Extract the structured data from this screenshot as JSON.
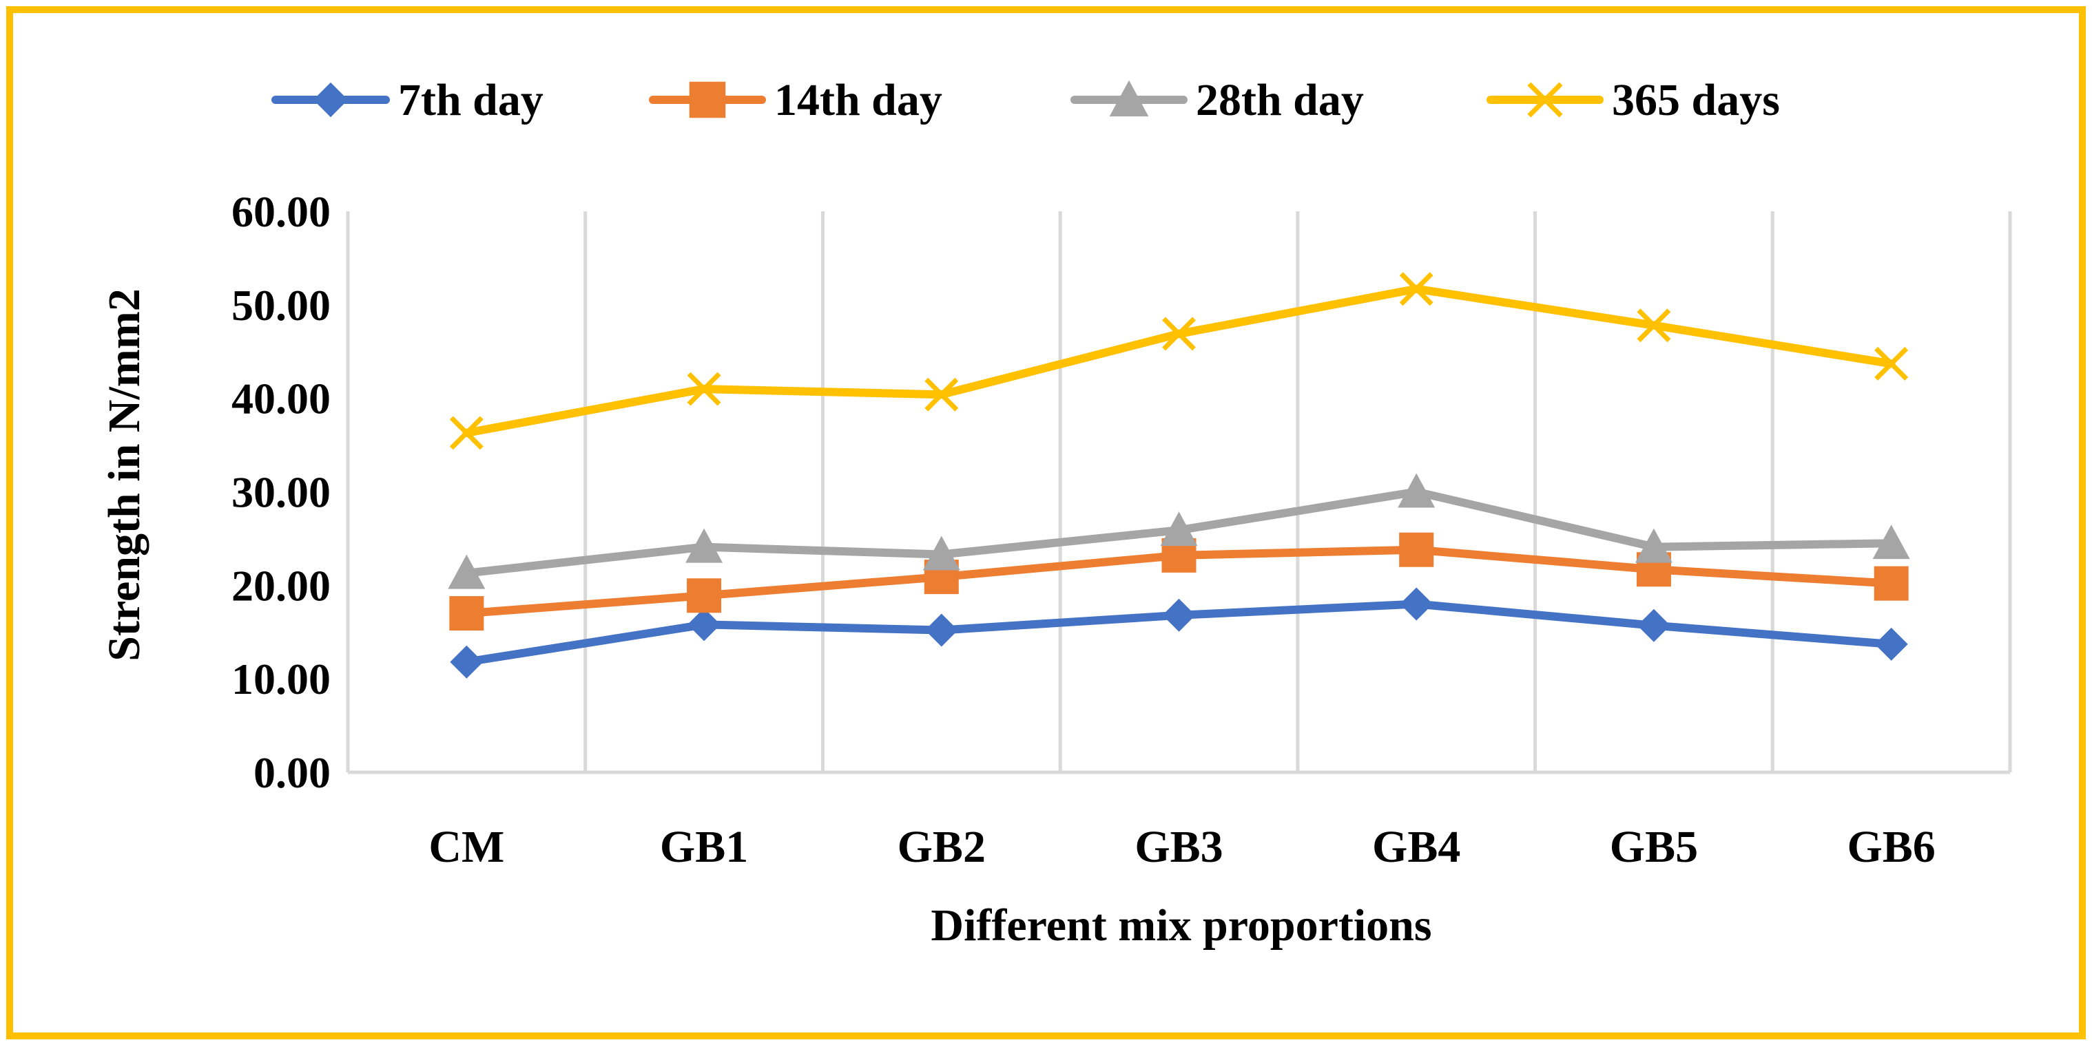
{
  "chart_data": {
    "type": "line",
    "title": "",
    "xlabel": "Different mix proportions",
    "ylabel": "Strength in N/mm2",
    "categories": [
      "CM",
      "GB1",
      "GB2",
      "GB3",
      "GB4",
      "GB5",
      "GB6"
    ],
    "ylim": [
      0,
      60
    ],
    "yticks": [
      "0.00",
      "10.00",
      "20.00",
      "30.00",
      "40.00",
      "50.00",
      "60.00"
    ],
    "grid": "vertical",
    "legend_position": "top",
    "series": [
      {
        "name": "7th day",
        "marker": "diamond",
        "color": "#4472C4",
        "values": [
          11.8,
          15.8,
          15.2,
          16.8,
          18.0,
          15.7,
          13.7
        ]
      },
      {
        "name": "14th day",
        "marker": "square",
        "color": "#ED7D31",
        "values": [
          17.0,
          18.9,
          20.9,
          23.2,
          23.8,
          21.7,
          20.2
        ]
      },
      {
        "name": "28th day",
        "marker": "triangle",
        "color": "#A5A5A5",
        "values": [
          21.3,
          24.1,
          23.3,
          25.9,
          30.0,
          24.1,
          24.5
        ]
      },
      {
        "name": "365 days",
        "marker": "cross",
        "color": "#FFC000",
        "values": [
          36.3,
          41.0,
          40.4,
          46.9,
          51.7,
          47.8,
          43.7
        ]
      }
    ]
  },
  "frame": {
    "border_color": "#FFC000",
    "grid_color": "#D9D9D9"
  }
}
